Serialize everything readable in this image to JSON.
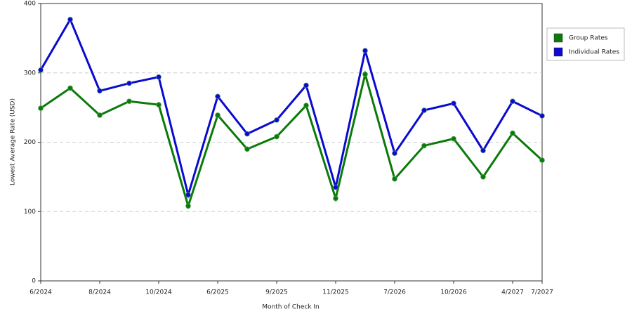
{
  "chart_data": {
    "type": "line",
    "x_label": "Month of Check In",
    "y_label": "Lowest Average Rate (USD)",
    "categories": [
      "6/2024",
      null,
      "8/2024",
      null,
      "10/2024",
      null,
      "6/2025",
      null,
      "9/2025",
      null,
      "11/2025",
      null,
      "7/2026",
      null,
      "10/2026",
      null,
      "4/2027",
      "7/2027"
    ],
    "series": [
      {
        "name": "Group Rates",
        "color": "#0a7a0a",
        "values": [
          249,
          278,
          239,
          259,
          254,
          108,
          239,
          190,
          208,
          253,
          119,
          298,
          147,
          195,
          205,
          150,
          213,
          174
        ]
      },
      {
        "name": "Individual Rates",
        "color": "#0a0ad0",
        "values": [
          304,
          377,
          274,
          285,
          294,
          124,
          266,
          212,
          232,
          282,
          135,
          332,
          184,
          246,
          256,
          188,
          259,
          238
        ]
      }
    ],
    "ylim": [
      0,
      400
    ],
    "yticks": [
      0,
      100,
      200,
      300,
      400
    ],
    "grid": true,
    "legend": "right"
  }
}
